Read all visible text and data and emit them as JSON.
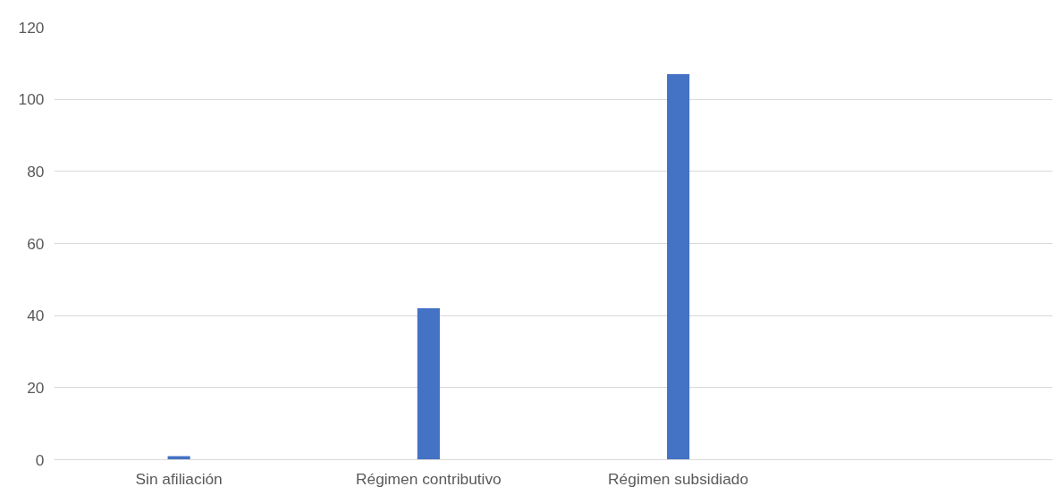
{
  "chart_data": {
    "type": "bar",
    "categories": [
      "Sin afiliación",
      "Régimen contributivo",
      "Régimen subsidiado",
      null
    ],
    "values": [
      1,
      42,
      107,
      null
    ],
    "color": "#4472c4",
    "ylim": [
      0,
      120
    ],
    "yticks": [
      0,
      20,
      40,
      60,
      80,
      100,
      120
    ],
    "grid": "y"
  }
}
